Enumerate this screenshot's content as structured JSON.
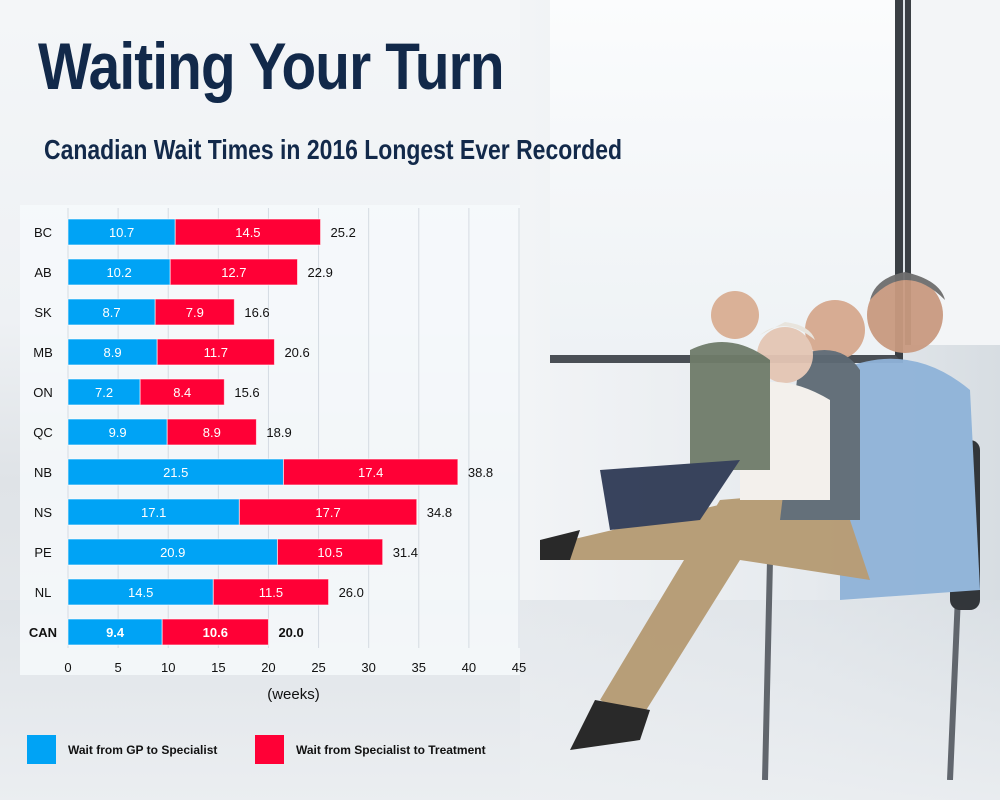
{
  "header": {
    "title": "Waiting Your Turn",
    "subtitle": "Canadian Wait Times in 2016 Longest Ever Recorded"
  },
  "chart_data": {
    "type": "bar",
    "orientation": "horizontal",
    "stacked": true,
    "categories": [
      "BC",
      "AB",
      "SK",
      "MB",
      "ON",
      "QC",
      "NB",
      "NS",
      "PE",
      "NL",
      "CAN"
    ],
    "series": [
      {
        "name": "Wait from GP to Specialist",
        "color": "#00a3f5",
        "values": [
          10.7,
          10.2,
          8.7,
          8.9,
          7.2,
          9.9,
          21.5,
          17.1,
          20.9,
          14.5,
          9.4
        ]
      },
      {
        "name": "Wait from Specialist to Treatment",
        "color": "#ff0036",
        "values": [
          14.5,
          12.7,
          7.9,
          11.7,
          8.4,
          8.9,
          17.4,
          17.7,
          10.5,
          11.5,
          10.6
        ]
      }
    ],
    "totals": [
      "25.2",
      "22.9",
      "16.6",
      "20.6",
      "15.6",
      "18.9",
      "38.8",
      "34.8",
      "31.4",
      "26.0",
      "20.0"
    ],
    "segment_labels": [
      [
        "10.7",
        "10.2",
        "8.7",
        "8.9",
        "7.2",
        "9.9",
        "21.5",
        "17.1",
        "20.9",
        "14.5",
        "9.4"
      ],
      [
        "14.5",
        "12.7",
        "7.9",
        "11.7",
        "8.4",
        "8.9",
        "17.4",
        "17.7",
        "10.5",
        "11.5",
        "10.6"
      ]
    ],
    "xlim": [
      0,
      45
    ],
    "xticks": [
      "0",
      "5",
      "10",
      "15",
      "20",
      "25",
      "30",
      "35",
      "40",
      "45"
    ],
    "xlabel": "(weeks)",
    "ylabel": "",
    "grid": "vertical",
    "legend_position": "bottom",
    "bold_category": "CAN"
  }
}
